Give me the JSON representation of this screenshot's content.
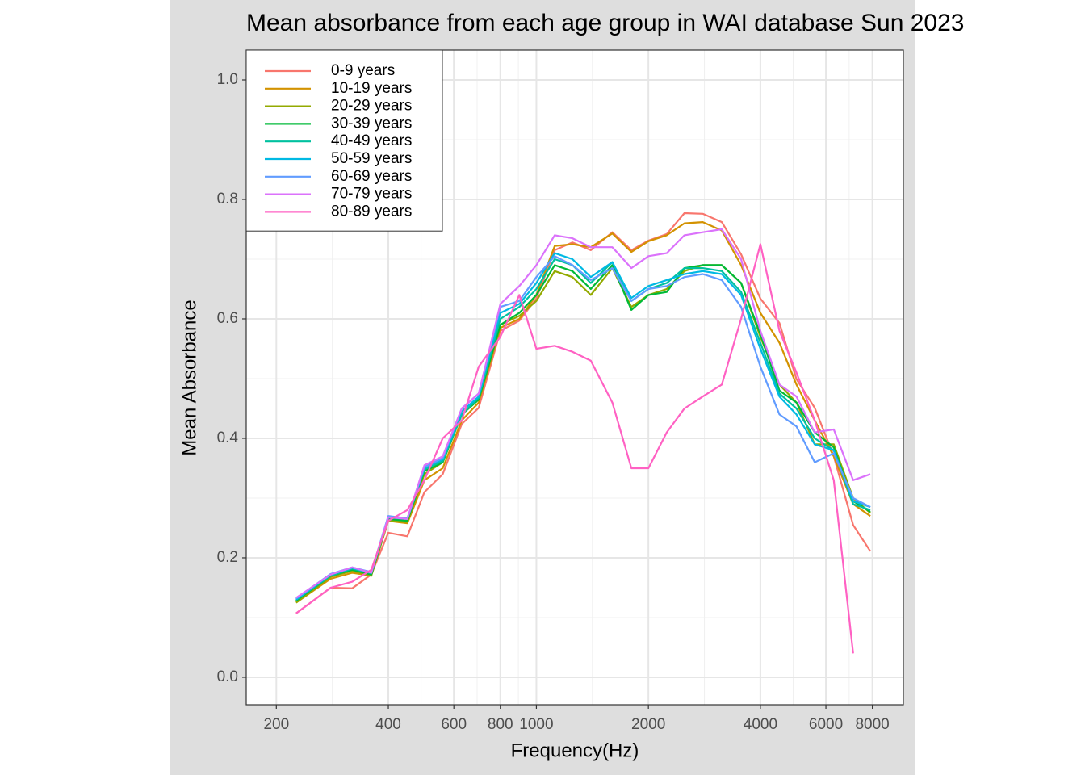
{
  "chart_data": {
    "type": "line",
    "title": "Mean absorbance from each age group in WAI database Sun 2023",
    "x_label": "Frequency(Hz)",
    "y_label": "Mean Absorbance",
    "x_log": true,
    "grid": true,
    "legend_position": "top-left",
    "x": [
      226,
      280,
      320,
      360,
      400,
      450,
      500,
      560,
      630,
      700,
      800,
      900,
      1000,
      1120,
      1250,
      1400,
      1600,
      1800,
      2000,
      2240,
      2500,
      2800,
      3150,
      3550,
      4000,
      4500,
      5000,
      5600,
      6300,
      7100,
      7900
    ],
    "xlim": [
      166,
      9690
    ],
    "xticks": [
      200,
      400,
      600,
      800,
      1000,
      2000,
      4000,
      6000,
      8000
    ],
    "ylim": [
      -0.046,
      1.05
    ],
    "yticks": [
      {
        "value": 0,
        "label": "0.0"
      },
      0.2,
      0.4,
      0.6,
      0.8,
      {
        "value": 1,
        "label": "1.0"
      }
    ],
    "series": [
      {
        "name": "0-9 years",
        "color": "#F8766D",
        "values": [
          0.107,
          0.15,
          0.149,
          0.172,
          0.242,
          0.236,
          0.31,
          0.34,
          0.424,
          0.451,
          0.58,
          0.597,
          0.634,
          0.715,
          0.728,
          0.715,
          0.745,
          0.715,
          0.731,
          0.742,
          0.777,
          0.776,
          0.762,
          0.708,
          0.634,
          0.593,
          0.499,
          0.451,
          0.37,
          0.255,
          0.211
        ]
      },
      {
        "name": "10-19 years",
        "color": "#D39200",
        "values": [
          0.125,
          0.165,
          0.175,
          0.17,
          0.262,
          0.258,
          0.33,
          0.35,
          0.43,
          0.46,
          0.585,
          0.6,
          0.64,
          0.722,
          0.725,
          0.72,
          0.743,
          0.712,
          0.73,
          0.74,
          0.76,
          0.762,
          0.748,
          0.69,
          0.61,
          0.56,
          0.49,
          0.43,
          0.37,
          0.29,
          0.27
        ]
      },
      {
        "name": "20-29 years",
        "color": "#93AA00",
        "values": [
          0.125,
          0.168,
          0.178,
          0.17,
          0.263,
          0.26,
          0.34,
          0.36,
          0.44,
          0.465,
          0.59,
          0.605,
          0.63,
          0.68,
          0.67,
          0.64,
          0.685,
          0.62,
          0.64,
          0.65,
          0.68,
          0.69,
          0.69,
          0.66,
          0.57,
          0.49,
          0.46,
          0.39,
          0.39,
          0.3,
          0.275
        ]
      },
      {
        "name": "30-39 years",
        "color": "#00BA38",
        "values": [
          0.128,
          0.17,
          0.18,
          0.172,
          0.265,
          0.262,
          0.345,
          0.36,
          0.44,
          0.465,
          0.59,
          0.61,
          0.64,
          0.69,
          0.68,
          0.65,
          0.69,
          0.615,
          0.64,
          0.645,
          0.685,
          0.69,
          0.69,
          0.66,
          0.575,
          0.48,
          0.46,
          0.41,
          0.385,
          0.295,
          0.277
        ]
      },
      {
        "name": "40-49 years",
        "color": "#00C19F",
        "values": [
          0.13,
          0.17,
          0.182,
          0.174,
          0.267,
          0.265,
          0.348,
          0.362,
          0.44,
          0.468,
          0.6,
          0.62,
          0.65,
          0.7,
          0.69,
          0.66,
          0.695,
          0.63,
          0.65,
          0.66,
          0.685,
          0.685,
          0.68,
          0.645,
          0.56,
          0.475,
          0.45,
          0.4,
          0.38,
          0.29,
          0.28
        ]
      },
      {
        "name": "50-59 years",
        "color": "#00B9E3",
        "values": [
          0.13,
          0.172,
          0.183,
          0.175,
          0.268,
          0.265,
          0.35,
          0.365,
          0.445,
          0.47,
          0.61,
          0.625,
          0.66,
          0.71,
          0.7,
          0.67,
          0.695,
          0.635,
          0.655,
          0.665,
          0.675,
          0.68,
          0.675,
          0.64,
          0.55,
          0.47,
          0.44,
          0.39,
          0.38,
          0.295,
          0.285
        ]
      },
      {
        "name": "60-69 years",
        "color": "#619CFF",
        "values": [
          0.132,
          0.173,
          0.184,
          0.176,
          0.27,
          0.266,
          0.352,
          0.367,
          0.45,
          0.475,
          0.62,
          0.63,
          0.67,
          0.705,
          0.69,
          0.665,
          0.685,
          0.63,
          0.65,
          0.655,
          0.67,
          0.675,
          0.665,
          0.62,
          0.52,
          0.44,
          0.42,
          0.36,
          0.375,
          0.3,
          0.285
        ]
      },
      {
        "name": "70-79 years",
        "color": "#DB72FB",
        "values": [
          0.133,
          0.172,
          0.184,
          0.175,
          0.268,
          0.265,
          0.355,
          0.37,
          0.45,
          0.475,
          0.625,
          0.655,
          0.69,
          0.74,
          0.735,
          0.72,
          0.72,
          0.685,
          0.705,
          0.71,
          0.74,
          0.745,
          0.75,
          0.7,
          0.58,
          0.49,
          0.47,
          0.41,
          0.415,
          0.33,
          0.34
        ]
      },
      {
        "name": "80-89 years",
        "color": "#FF61C3",
        "values": [
          0.107,
          0.15,
          0.16,
          0.18,
          0.262,
          0.28,
          0.33,
          0.4,
          0.43,
          0.52,
          0.57,
          0.64,
          0.55,
          0.555,
          0.545,
          0.53,
          0.46,
          0.35,
          0.35,
          0.41,
          0.45,
          0.47,
          0.49,
          0.6,
          0.725,
          0.58,
          0.51,
          0.43,
          0.33,
          0.04,
          null
        ]
      }
    ]
  }
}
